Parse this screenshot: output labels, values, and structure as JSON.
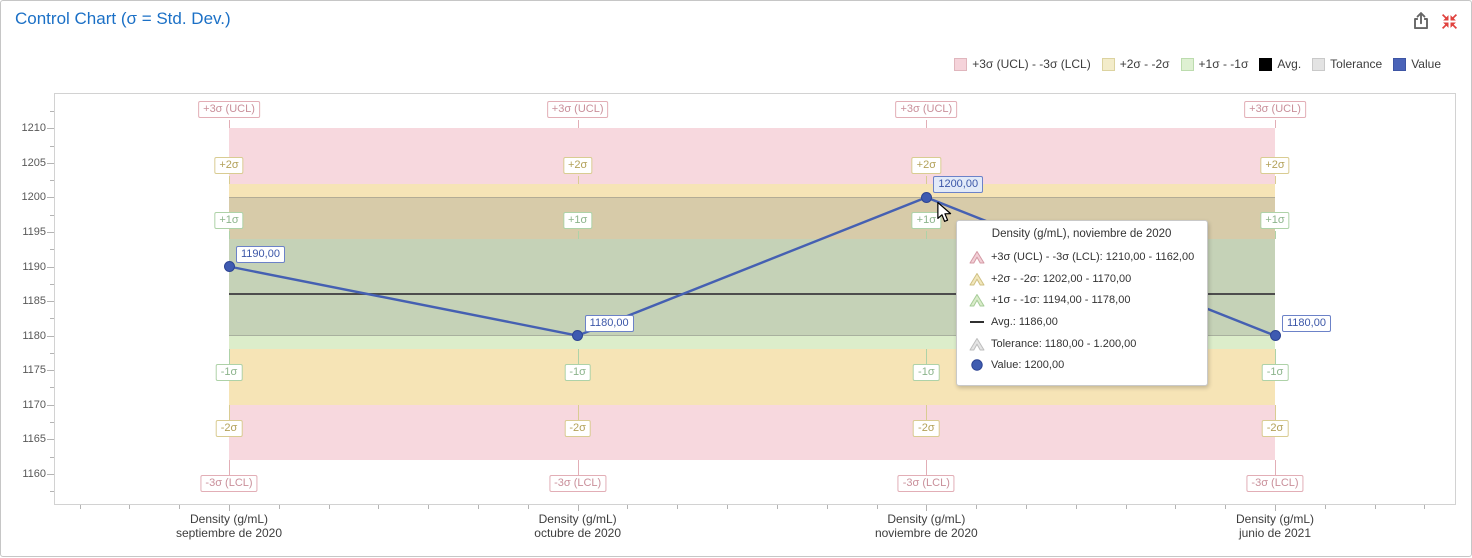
{
  "header": {
    "title": "Control Chart (σ = Std. Dev.)"
  },
  "legend": {
    "items": [
      {
        "label": "+3σ (UCL) - -3σ (LCL)",
        "fill": "#f5d3da",
        "border": "#e0b6bd"
      },
      {
        "label": "+2σ - -2σ",
        "fill": "#f3ecca",
        "border": "#dcd3a0"
      },
      {
        "label": "+1σ - -1σ",
        "fill": "#def0d2",
        "border": "#bcdcae"
      },
      {
        "label": "Avg.",
        "fill": "#000000",
        "border": "#000000"
      },
      {
        "label": "Tolerance",
        "fill": "#e3e3e3",
        "border": "#c9c9c9"
      },
      {
        "label": "Value",
        "fill": "#4a63b8",
        "border": "#3e55a4"
      }
    ]
  },
  "chart_data": {
    "type": "line",
    "title": "Control Chart (σ = Std. Dev.)",
    "categories": [
      {
        "line1": "Density (g/mL)",
        "line2": "septiembre de 2020"
      },
      {
        "line1": "Density (g/mL)",
        "line2": "octubre de 2020"
      },
      {
        "line1": "Density (g/mL)",
        "line2": "noviembre de 2020"
      },
      {
        "line1": "Density (g/mL)",
        "line2": "junio de 2021"
      }
    ],
    "series": [
      {
        "name": "Value",
        "values": [
          1190,
          1180,
          1200,
          1180
        ],
        "labels": [
          "1190,00",
          "1180,00",
          "1200,00",
          "1180,00"
        ],
        "line_color": "#4560b2",
        "point_fill": "#3e5ab1",
        "point_stroke": "#2d4493"
      }
    ],
    "hovered_point_index": 2,
    "bands": [
      {
        "name": "+3σ (UCL) - -3σ (LCL)",
        "upper": 1210,
        "lower": 1162,
        "fill": "#f7d8de"
      },
      {
        "name": "+2σ - -2σ",
        "upper": 1202,
        "lower": 1170,
        "fill": "#f6e4b6"
      },
      {
        "name": "+1σ - -1σ",
        "upper": 1194,
        "lower": 1178,
        "fill": "#dcedca"
      }
    ],
    "avg": {
      "label": "Avg.",
      "value": 1186,
      "color": "#4d4d4d"
    },
    "tolerance": {
      "label": "Tolerance",
      "upper": 1200,
      "lower": 1180,
      "fill": "rgba(150,152,144,0.32)"
    },
    "band_labels": [
      {
        "text": "+3σ (UCL)",
        "value": 1210,
        "side": "above",
        "cls": "pink"
      },
      {
        "text": "+2σ",
        "value": 1202,
        "side": "above",
        "cls": "yellow"
      },
      {
        "text": "+1σ",
        "value": 1194,
        "side": "above",
        "cls": "green"
      },
      {
        "text": "-1σ",
        "value": 1178,
        "side": "below",
        "cls": "green"
      },
      {
        "text": "-2σ",
        "value": 1170,
        "side": "below",
        "cls": "yellow"
      },
      {
        "text": "-3σ (LCL)",
        "value": 1162,
        "side": "below",
        "cls": "pink"
      }
    ],
    "y_axis": {
      "min": 1155.5,
      "max": 1215.1,
      "tick_step": 5,
      "tick_labels": [
        "1160",
        "1165",
        "1170",
        "1175",
        "1180",
        "1185",
        "1190",
        "1195",
        "1200",
        "1205",
        "1210"
      ],
      "first_tick": 1160
    }
  },
  "tooltip": {
    "title": "Density (g/mL), noviembre de 2020",
    "rows": [
      {
        "icon": "range-band-icon",
        "fill": "#f2cfd6",
        "stroke": "#d49aa5",
        "text": "+3σ (UCL) - -3σ (LCL): 1210,00 - 1162,00"
      },
      {
        "icon": "range-band-icon",
        "fill": "#f2e7bc",
        "stroke": "#cfc083",
        "text": "+2σ - -2σ: 1202,00 - 1170,00"
      },
      {
        "icon": "range-band-icon",
        "fill": "#daecca",
        "stroke": "#a6cc98",
        "text": "+1σ - -1σ: 1194,00 - 1178,00"
      },
      {
        "icon": "avg-line-icon",
        "fill": "#1a1a1a",
        "stroke": "#1a1a1a",
        "text": "Avg.: 1186,00"
      },
      {
        "icon": "range-band-icon",
        "fill": "#e4e4e4",
        "stroke": "#bdbdbd",
        "text": "Tolerance: 1180,00 - 1.200,00"
      },
      {
        "icon": "value-point-icon",
        "fill": "#3f5cb0",
        "stroke": "#2d4493",
        "text": "Value: 1200,00"
      }
    ]
  }
}
